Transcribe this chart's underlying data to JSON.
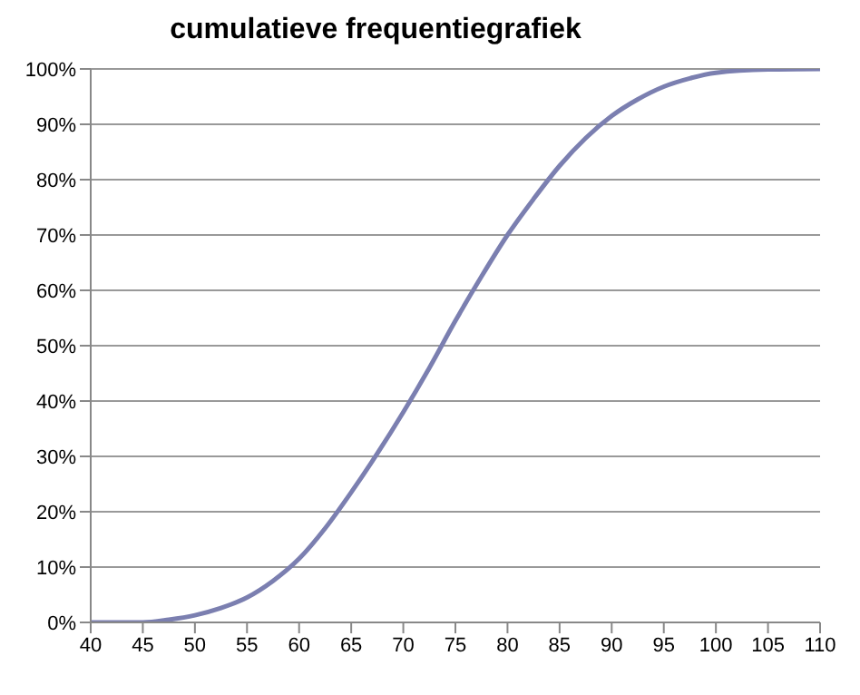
{
  "chart_data": {
    "type": "line",
    "title": "cumulatieve frequentiegrafiek",
    "x": [
      40,
      45,
      47.5,
      50,
      52.5,
      55,
      57.5,
      60,
      62.5,
      65,
      67.5,
      70,
      72.5,
      75,
      77.5,
      80,
      82.5,
      85,
      87.5,
      90,
      92.5,
      95,
      97.5,
      100,
      105,
      110
    ],
    "series": [
      {
        "color": "#7b7fb0",
        "values": [
          0,
          0,
          0.5,
          1.3,
          2.6,
          4.5,
          7.5,
          11.5,
          17,
          23.5,
          30.5,
          38,
          46,
          54.5,
          62.5,
          70,
          76.5,
          82.5,
          87.5,
          91.5,
          94.5,
          96.8,
          98.3,
          99.3,
          99.9,
          100
        ]
      }
    ],
    "xlim": [
      40,
      110
    ],
    "xticks": [
      40,
      45,
      50,
      55,
      60,
      65,
      70,
      75,
      80,
      85,
      90,
      95,
      100,
      105,
      110
    ],
    "ylim": [
      0,
      100
    ],
    "yticks": [
      {
        "value": 0,
        "label": "0%"
      },
      {
        "value": 10,
        "label": "10%"
      },
      {
        "value": 20,
        "label": "20%"
      },
      {
        "value": 30,
        "label": "30%"
      },
      {
        "value": 40,
        "label": "40%"
      },
      {
        "value": 50,
        "label": "50%"
      },
      {
        "value": 60,
        "label": "60%"
      },
      {
        "value": 70,
        "label": "70%"
      },
      {
        "value": 80,
        "label": "80%"
      },
      {
        "value": 90,
        "label": "90%"
      },
      {
        "value": 100,
        "label": "100%"
      }
    ],
    "grid": "y",
    "legend": false,
    "marker": "none"
  }
}
